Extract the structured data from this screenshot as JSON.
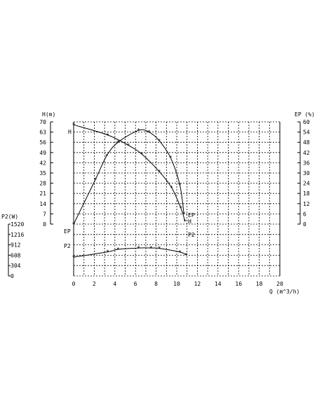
{
  "chart_data": {
    "type": "line",
    "x": {
      "label": "Q (m^3/h)",
      "ticks": [
        0,
        2,
        4,
        6,
        8,
        10,
        12,
        14,
        16,
        18,
        20
      ],
      "range": [
        0,
        20
      ]
    },
    "axes": {
      "H": {
        "label": "H(m)",
        "ticks": [
          0,
          7,
          14,
          21,
          28,
          35,
          42,
          49,
          56,
          63,
          70
        ],
        "range": [
          0,
          70
        ]
      },
      "EP": {
        "label": "EP (%)",
        "ticks": [
          0,
          6,
          12,
          18,
          24,
          30,
          36,
          42,
          48,
          54,
          60
        ],
        "range": [
          0,
          60
        ]
      },
      "P2": {
        "label": "P2(W)",
        "ticks": [
          0,
          304,
          608,
          912,
          1216,
          1520
        ],
        "range": [
          0,
          1520
        ]
      }
    },
    "grid": true,
    "series": [
      {
        "name": "H",
        "axis": "H",
        "points": [
          [
            0,
            68
          ],
          [
            3.3,
            61
          ],
          [
            5.3,
            54
          ],
          [
            6.6,
            48
          ],
          [
            8.3,
            36
          ],
          [
            9.5,
            25
          ],
          [
            10.4,
            11
          ],
          [
            10.8,
            2
          ]
        ]
      },
      {
        "name": "EP",
        "axis": "EP",
        "points": [
          [
            0,
            0
          ],
          [
            2.1,
            26
          ],
          [
            3.2,
            40
          ],
          [
            4.3,
            48
          ],
          [
            6.3,
            55
          ],
          [
            7.3,
            54
          ],
          [
            8.3,
            49
          ],
          [
            9.4,
            39
          ],
          [
            10.3,
            23
          ],
          [
            10.7,
            6
          ]
        ]
      },
      {
        "name": "P2",
        "axis": "P2",
        "points": [
          [
            0,
            550
          ],
          [
            3.3,
            705
          ],
          [
            4.3,
            780
          ],
          [
            6.3,
            820
          ],
          [
            7.5,
            820
          ],
          [
            8.3,
            808
          ],
          [
            10.3,
            700
          ],
          [
            10.9,
            620
          ]
        ]
      }
    ],
    "labels": {
      "H_left": "H",
      "EP_left": "EP",
      "P2_left": "P2",
      "H_right": "H",
      "EP_right": "EP",
      "P2_right": "P2"
    }
  }
}
